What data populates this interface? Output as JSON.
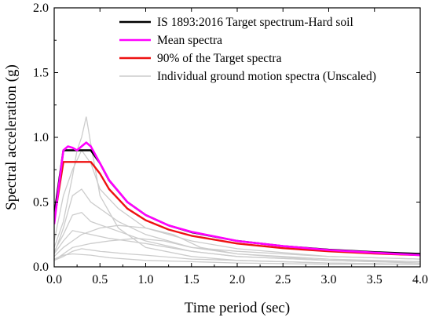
{
  "chart_data": {
    "type": "line",
    "xlabel": "Time period (sec)",
    "ylabel": "Spectral acceleration (g)",
    "xlim": [
      0,
      4.0
    ],
    "ylim": [
      0,
      2.0
    ],
    "xticks": [
      "0.0",
      "0.5",
      "1.0",
      "1.5",
      "2.0",
      "2.5",
      "3.0",
      "3.5",
      "4.0"
    ],
    "yticks": [
      "0.0",
      "0.5",
      "1.0",
      "1.5",
      "2.0"
    ],
    "grid": false,
    "legend_position": "top-right",
    "legend": [
      {
        "label": "IS 1893:2016 Target spectrum-Hard soil",
        "color": "#000000"
      },
      {
        "label": "Mean spectra",
        "color": "#ff00ff"
      },
      {
        "label": "90%  of the Target spectra",
        "color": "#ee1111"
      },
      {
        "label": "Individual ground motion spectra (Unscaled)",
        "color": "#cccccc"
      }
    ],
    "series": [
      {
        "name": "IS 1893:2016 Target spectrum-Hard soil",
        "color": "#000000",
        "x": [
          0,
          0.1,
          0.4,
          0.5,
          0.6,
          0.8,
          1.0,
          1.25,
          1.5,
          2.0,
          2.5,
          3.0,
          3.5,
          4.0
        ],
        "y": [
          0.4,
          0.9,
          0.9,
          0.8,
          0.667,
          0.5,
          0.4,
          0.32,
          0.267,
          0.2,
          0.16,
          0.133,
          0.114,
          0.1
        ]
      },
      {
        "name": "Mean spectra",
        "color": "#ff00ff",
        "x": [
          0,
          0.05,
          0.1,
          0.15,
          0.2,
          0.25,
          0.3,
          0.35,
          0.4,
          0.5,
          0.6,
          0.8,
          1.0,
          1.25,
          1.5,
          2.0,
          2.5,
          3.0,
          3.5,
          4.0
        ],
        "y": [
          0.33,
          0.62,
          0.9,
          0.93,
          0.92,
          0.9,
          0.93,
          0.96,
          0.93,
          0.8,
          0.67,
          0.5,
          0.4,
          0.32,
          0.27,
          0.2,
          0.16,
          0.13,
          0.11,
          0.09
        ]
      },
      {
        "name": "90%  of the Target spectra",
        "color": "#ee1111",
        "x": [
          0,
          0.1,
          0.4,
          0.5,
          0.6,
          0.8,
          1.0,
          1.25,
          1.5,
          2.0,
          2.5,
          3.0,
          3.5,
          4.0
        ],
        "y": [
          0.36,
          0.81,
          0.81,
          0.72,
          0.6,
          0.45,
          0.36,
          0.288,
          0.24,
          0.18,
          0.144,
          0.12,
          0.103,
          0.09
        ]
      }
    ],
    "individual_spectra": [
      {
        "x": [
          0,
          0.1,
          0.2,
          0.25,
          0.3,
          0.35,
          0.4,
          0.5,
          0.7,
          1.0,
          1.5,
          2.0,
          3.0,
          4.0
        ],
        "y": [
          0.15,
          0.35,
          0.7,
          0.9,
          1.0,
          1.16,
          0.95,
          0.55,
          0.3,
          0.15,
          0.08,
          0.05,
          0.03,
          0.02
        ]
      },
      {
        "x": [
          0,
          0.1,
          0.2,
          0.3,
          0.4,
          0.5,
          0.7,
          1.0,
          1.5,
          2.0,
          3.0,
          4.0
        ],
        "y": [
          0.2,
          0.55,
          0.75,
          0.9,
          0.8,
          0.6,
          0.45,
          0.3,
          0.2,
          0.14,
          0.08,
          0.06
        ]
      },
      {
        "x": [
          0,
          0.1,
          0.2,
          0.3,
          0.4,
          0.5,
          0.7,
          1.0,
          1.5,
          2.0,
          3.0,
          4.0
        ],
        "y": [
          0.1,
          0.3,
          0.55,
          0.6,
          0.5,
          0.45,
          0.35,
          0.25,
          0.15,
          0.1,
          0.06,
          0.04
        ]
      },
      {
        "x": [
          0,
          0.1,
          0.2,
          0.3,
          0.4,
          0.6,
          0.8,
          1.0,
          1.5,
          2.0,
          3.0,
          4.0
        ],
        "y": [
          0.12,
          0.25,
          0.4,
          0.42,
          0.35,
          0.3,
          0.25,
          0.2,
          0.12,
          0.08,
          0.05,
          0.03
        ]
      },
      {
        "x": [
          0,
          0.1,
          0.2,
          0.3,
          0.5,
          0.7,
          1.0,
          1.3,
          1.6,
          2.0,
          3.0,
          4.0
        ],
        "y": [
          0.08,
          0.15,
          0.2,
          0.25,
          0.3,
          0.32,
          0.3,
          0.25,
          0.15,
          0.1,
          0.05,
          0.03
        ]
      },
      {
        "x": [
          0,
          0.1,
          0.2,
          0.4,
          0.6,
          0.9,
          1.2,
          1.5,
          2.0,
          3.0,
          4.0
        ],
        "y": [
          0.05,
          0.1,
          0.15,
          0.18,
          0.2,
          0.22,
          0.2,
          0.15,
          0.12,
          0.08,
          0.06
        ]
      },
      {
        "x": [
          0,
          0.1,
          0.2,
          0.4,
          0.6,
          0.8,
          1.0,
          1.5,
          2.0,
          3.0,
          4.0
        ],
        "y": [
          0.1,
          0.2,
          0.28,
          0.25,
          0.22,
          0.2,
          0.18,
          0.12,
          0.08,
          0.05,
          0.04
        ]
      },
      {
        "x": [
          0,
          0.1,
          0.2,
          0.3,
          0.5,
          0.8,
          1.0,
          1.5,
          2.0,
          3.0,
          4.0
        ],
        "y": [
          0.05,
          0.08,
          0.12,
          0.14,
          0.12,
          0.1,
          0.09,
          0.06,
          0.05,
          0.03,
          0.02
        ]
      },
      {
        "x": [
          0,
          0.1,
          0.2,
          0.4,
          0.6,
          1.0,
          1.5,
          2.0,
          3.0,
          4.0
        ],
        "y": [
          0.06,
          0.09,
          0.1,
          0.09,
          0.07,
          0.05,
          0.04,
          0.03,
          0.02,
          0.02
        ]
      }
    ]
  }
}
